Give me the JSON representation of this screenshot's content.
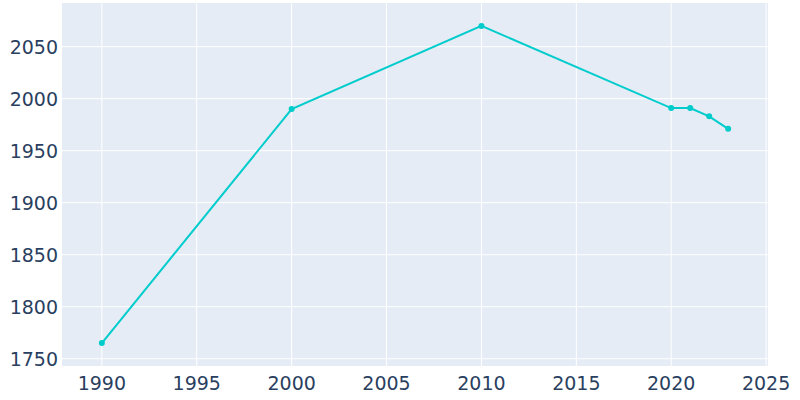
{
  "chart_data": {
    "type": "line",
    "x": [
      1990,
      2000,
      2010,
      2020,
      2021,
      2022,
      2023
    ],
    "series": [
      {
        "color": "#00cccc",
        "marker": "circle",
        "values": [
          1765,
          1990,
          2070,
          1991,
          1991,
          1983,
          1971
        ]
      }
    ],
    "xlim": [
      1987.9,
      2025.1
    ],
    "xticks": [
      1990,
      1995,
      2000,
      2005,
      2010,
      2015,
      2020,
      2025
    ],
    "ylim": [
      1743,
      2092
    ],
    "yticks": [
      1750,
      1800,
      1850,
      1900,
      1950,
      2000,
      2050
    ],
    "grid": true
  }
}
